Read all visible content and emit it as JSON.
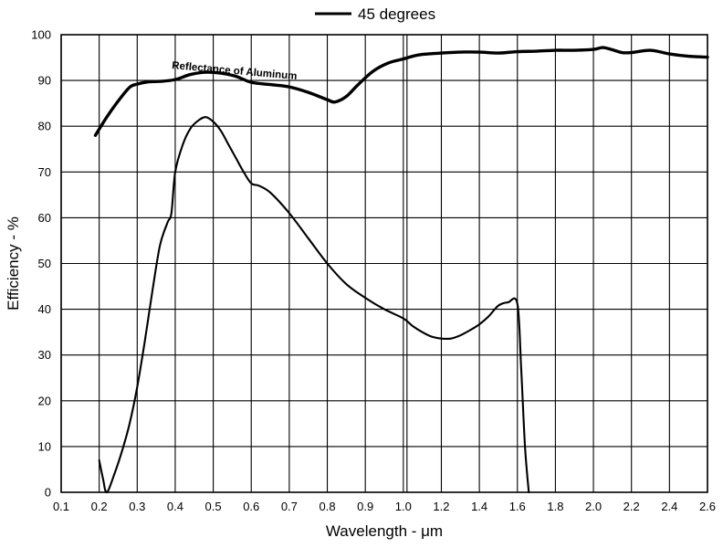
{
  "chart_data": {
    "type": "line",
    "title": "",
    "xlabel": "Wavelength - μm",
    "ylabel": "Efficiency - %",
    "xlim": [
      0.1,
      2.6
    ],
    "ylim": [
      0,
      100
    ],
    "x_ticks": [
      0.1,
      0.2,
      0.3,
      0.4,
      0.5,
      0.6,
      0.7,
      0.8,
      0.9,
      1.0,
      1.2,
      1.4,
      1.6,
      1.8,
      2.0,
      2.2,
      2.4,
      2.6
    ],
    "x_tick_labels": [
      "0.1",
      "0.2",
      "0.3",
      "0.4",
      "0.5",
      "0.6",
      "0.7",
      "0.8",
      "0.9",
      "1.0",
      "1.2",
      "1.4",
      "1.6",
      "1.8",
      "2.0",
      "2.2",
      "2.4",
      "2.6"
    ],
    "y_ticks": [
      0,
      10,
      20,
      30,
      40,
      50,
      60,
      70,
      80,
      90,
      100
    ],
    "y_tick_labels": [
      "0",
      "10",
      "20",
      "30",
      "40",
      "50",
      "60",
      "70",
      "80",
      "90",
      "100"
    ],
    "grid": true,
    "legend": {
      "position": "top-center",
      "entries": [
        "45 degrees"
      ]
    },
    "annotations": [
      {
        "text": "Reflectance of Aluminum",
        "series": "Reflectance of Aluminum"
      }
    ],
    "series": [
      {
        "name": "Reflectance of Aluminum",
        "x": [
          0.19,
          0.22,
          0.25,
          0.28,
          0.3,
          0.33,
          0.36,
          0.4,
          0.44,
          0.48,
          0.52,
          0.56,
          0.6,
          0.65,
          0.7,
          0.75,
          0.8,
          0.82,
          0.85,
          0.88,
          0.92,
          0.96,
          1.0,
          1.05,
          1.1,
          1.2,
          1.3,
          1.4,
          1.5,
          1.6,
          1.7,
          1.8,
          1.9,
          2.0,
          2.05,
          2.1,
          2.15,
          2.2,
          2.3,
          2.4,
          2.5,
          2.6
        ],
        "values": [
          78,
          82,
          85.5,
          88.5,
          89.2,
          89.7,
          89.8,
          90.2,
          91.3,
          91.8,
          91.6,
          90.9,
          89.6,
          89.1,
          88.6,
          87.4,
          85.8,
          85.3,
          86.5,
          89,
          92,
          93.8,
          94.7,
          95.3,
          95.7,
          96,
          96.2,
          96.2,
          96,
          96.3,
          96.4,
          96.6,
          96.6,
          96.8,
          97.2,
          96.7,
          96.1,
          96.1,
          96.6,
          95.8,
          95.3,
          95.1
        ]
      },
      {
        "name": "45 degrees",
        "x": [
          0.2,
          0.21,
          0.22,
          0.24,
          0.26,
          0.28,
          0.3,
          0.32,
          0.34,
          0.36,
          0.38,
          0.39,
          0.4,
          0.42,
          0.44,
          0.46,
          0.48,
          0.5,
          0.52,
          0.54,
          0.56,
          0.58,
          0.6,
          0.62,
          0.65,
          0.7,
          0.75,
          0.8,
          0.85,
          0.9,
          0.95,
          1.0,
          1.05,
          1.1,
          1.15,
          1.2,
          1.25,
          1.3,
          1.35,
          1.4,
          1.45,
          1.5,
          1.55,
          1.6,
          1.62,
          1.64,
          1.66
        ],
        "values": [
          7,
          3,
          0,
          4,
          9,
          15,
          23,
          33,
          44,
          54,
          59,
          61,
          70,
          76,
          79.5,
          81.2,
          82,
          81,
          79,
          76,
          73,
          70,
          67.5,
          67,
          65.5,
          61,
          55.5,
          50,
          45.5,
          42.5,
          40,
          38,
          36.3,
          35,
          34,
          33.6,
          33.6,
          34.3,
          35.4,
          36.7,
          38.5,
          40.8,
          41.5,
          41.2,
          27,
          10,
          0
        ]
      }
    ]
  }
}
